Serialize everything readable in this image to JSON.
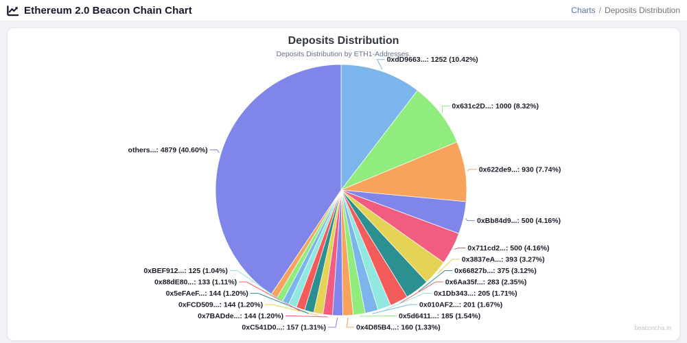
{
  "header": {
    "title": "Ethereum 2.0 Beacon Chain Chart",
    "breadcrumb": {
      "link": "Charts",
      "separator": "/",
      "current": "Deposits Distribution"
    }
  },
  "chart": {
    "title": "Deposits Distribution",
    "subtitle": "Deposits Distribution by ETH1-Addresses.",
    "watermark": "beaconcha.in"
  },
  "chart_data": {
    "type": "pie",
    "title": "Deposits Distribution",
    "subtitle": "Deposits Distribution by ETH1-Addresses.",
    "label_format": "{label}: {value} ({pct}%)",
    "legend": "none",
    "slices": [
      {
        "label": "0xdD9663...",
        "value": 1252,
        "pct": 10.42,
        "color": "#7cb5ec"
      },
      {
        "label": "0x631c2D...",
        "value": 1000,
        "pct": 8.32,
        "color": "#90ed7d"
      },
      {
        "label": "0x622de9...",
        "value": 930,
        "pct": 7.74,
        "color": "#f7a35c"
      },
      {
        "label": "0xBb84d9...",
        "value": 500,
        "pct": 4.16,
        "color": "#8085e9"
      },
      {
        "label": "0x711cd2...",
        "value": 500,
        "pct": 4.16,
        "color": "#f15c80"
      },
      {
        "label": "0x3837eA...",
        "value": 393,
        "pct": 3.27,
        "color": "#e4d354"
      },
      {
        "label": "0x66827b...",
        "value": 375,
        "pct": 3.12,
        "color": "#2b908f"
      },
      {
        "label": "0x6Aa35f...",
        "value": 283,
        "pct": 2.35,
        "color": "#f45b5b"
      },
      {
        "label": "0x1Db343...",
        "value": 205,
        "pct": 1.71,
        "color": "#91e8e1"
      },
      {
        "label": "0x010AF2...",
        "value": 201,
        "pct": 1.67,
        "color": "#7cb5ec"
      },
      {
        "label": "0x5d6411...",
        "value": 185,
        "pct": 1.54,
        "color": "#90ed7d"
      },
      {
        "label": "0x4D85B4...",
        "value": 160,
        "pct": 1.33,
        "color": "#f7a35c"
      },
      {
        "label": "0xC541D0...",
        "value": 157,
        "pct": 1.31,
        "color": "#8085e9"
      },
      {
        "label": "0x7BADde...",
        "value": 144,
        "pct": 1.2,
        "color": "#f15c80"
      },
      {
        "label": "0xFCD509...",
        "value": 144,
        "pct": 1.2,
        "color": "#e4d354"
      },
      {
        "label": "0x5eFAeF...",
        "value": 144,
        "pct": 1.2,
        "color": "#2b908f"
      },
      {
        "label": "0x88dE80...",
        "value": 133,
        "pct": 1.11,
        "color": "#f45b5b"
      },
      {
        "label": "0xBEF912...",
        "value": 125,
        "pct": 1.04,
        "color": "#91e8e1"
      },
      {
        "label": "",
        "pct": 0.85,
        "color": "#7cb5ec",
        "label_hidden": true
      },
      {
        "label": "",
        "pct": 0.85,
        "color": "#90ed7d",
        "label_hidden": true
      },
      {
        "label": "",
        "pct": 0.85,
        "color": "#f7a35c",
        "label_hidden": true
      },
      {
        "label": "others...",
        "value": 4879,
        "pct": 40.6,
        "color": "#8085e9"
      }
    ]
  },
  "colors": {
    "link": "#5374ad",
    "page_background": "#f1f2f6",
    "card_background": "#ffffff"
  }
}
